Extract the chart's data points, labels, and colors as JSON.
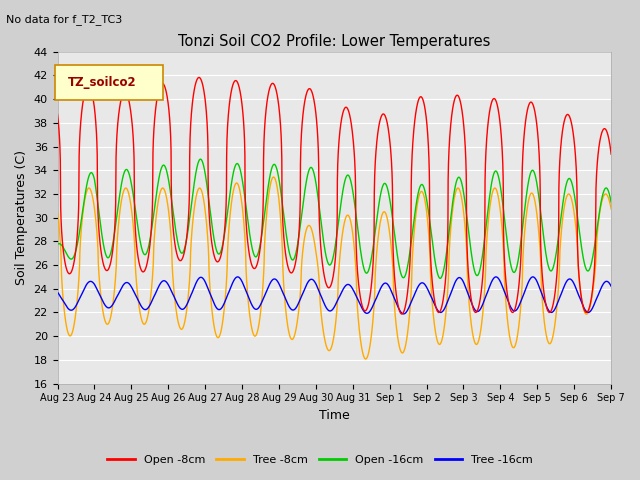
{
  "title": "Tonzi Soil CO2 Profile: Lower Temperatures",
  "subtitle": "No data for f_T2_TC3",
  "xlabel": "Time",
  "ylabel": "Soil Temperatures (C)",
  "ylim": [
    16,
    44
  ],
  "yticks": [
    16,
    18,
    20,
    22,
    24,
    26,
    28,
    30,
    32,
    34,
    36,
    38,
    40,
    42,
    44
  ],
  "legend_label": "TZ_soilco2",
  "series_labels": [
    "Open -8cm",
    "Tree -8cm",
    "Open -16cm",
    "Tree -16cm"
  ],
  "series_colors": [
    "#ff0000",
    "#ffaa00",
    "#00cc00",
    "#0000ff"
  ],
  "x_tick_labels": [
    "Aug 23",
    "Aug 24",
    "Aug 25",
    "Aug 26",
    "Aug 27",
    "Aug 28",
    "Aug 29",
    "Aug 30",
    "Aug 31",
    "Sep 1",
    "Sep 2",
    "Sep 3",
    "Sep 4",
    "Sep 5",
    "Sep 6",
    "Sep 7"
  ],
  "bg_color": "#e8e8e8",
  "n_days": 15,
  "open8_peaks": [
    40.7,
    41.2,
    40.5,
    41.5,
    41.9,
    41.5,
    41.3,
    40.8,
    39.0,
    38.7,
    40.5,
    40.3,
    40.0,
    39.7,
    38.5
  ],
  "open8_troughs": [
    25.0,
    25.8,
    25.0,
    26.3,
    26.5,
    25.8,
    25.5,
    25.0,
    22.3,
    21.8,
    22.0,
    22.0,
    22.0,
    22.0,
    22.0
  ],
  "tree8_peaks": [
    32.5,
    32.5,
    32.5,
    32.5,
    32.5,
    33.0,
    33.5,
    28.5,
    30.5,
    30.5,
    32.5,
    32.5,
    32.5,
    32.0,
    32.0
  ],
  "tree8_troughs": [
    19.5,
    21.0,
    21.0,
    21.0,
    19.8,
    20.0,
    20.0,
    19.2,
    18.0,
    18.2,
    19.3,
    19.3,
    19.3,
    18.5,
    21.0
  ],
  "open16_peaks": [
    28.0,
    34.5,
    34.0,
    34.5,
    35.0,
    34.5,
    34.5,
    34.2,
    33.5,
    32.8,
    32.8,
    33.5,
    34.0,
    34.0,
    33.2
  ],
  "open16_troughs": [
    26.5,
    26.5,
    26.8,
    27.0,
    27.0,
    26.8,
    26.5,
    26.3,
    25.5,
    25.0,
    24.8,
    25.0,
    25.3,
    25.5,
    25.5
  ],
  "tree16_peaks": [
    24.0,
    24.7,
    24.5,
    24.7,
    25.0,
    25.0,
    24.8,
    24.8,
    24.3,
    24.5,
    24.5,
    25.0,
    25.0,
    25.0,
    24.8
  ],
  "tree16_troughs": [
    22.0,
    22.5,
    22.2,
    22.3,
    22.2,
    22.3,
    22.2,
    22.2,
    22.0,
    21.8,
    22.0,
    22.0,
    22.2,
    22.0,
    22.0
  ]
}
